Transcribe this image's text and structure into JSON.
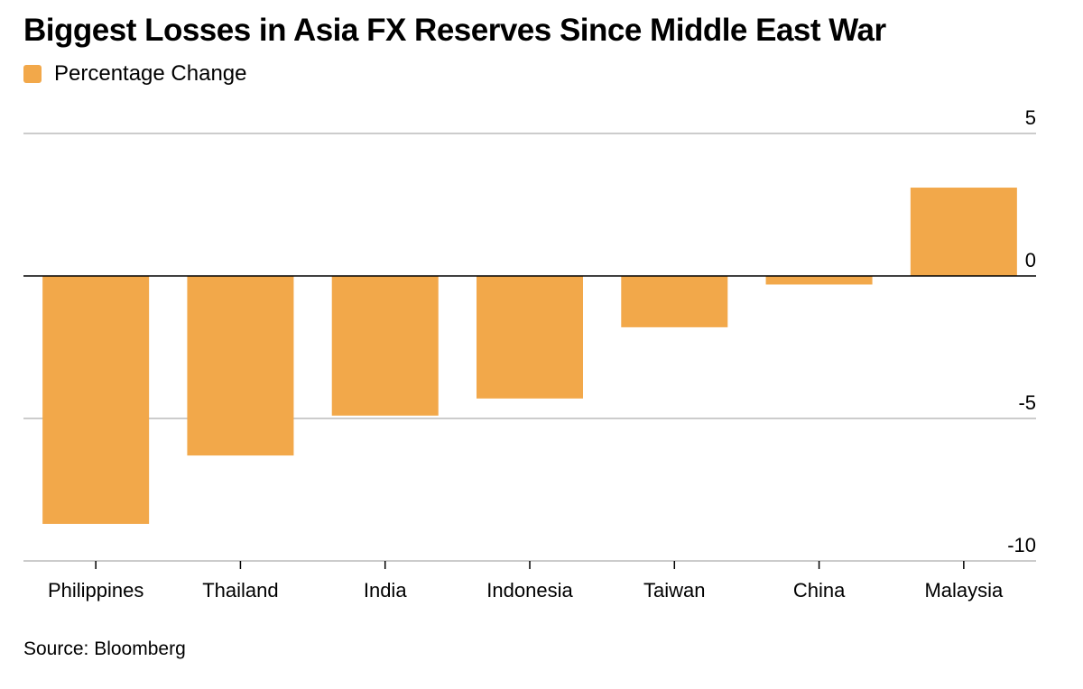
{
  "title": "Biggest Losses in Asia FX Reserves Since Middle East War",
  "legend": {
    "label": "Percentage Change",
    "color": "#f2a84a"
  },
  "source": "Source: Bloomberg",
  "chart_data": {
    "type": "bar",
    "categories": [
      "Philippines",
      "Thailand",
      "India",
      "Indonesia",
      "Taiwan",
      "China",
      "Malaysia"
    ],
    "series": [
      {
        "name": "Percentage Change",
        "values": [
          -8.7,
          -6.3,
          -4.9,
          -4.3,
          -1.8,
          -0.3,
          3.1
        ]
      }
    ],
    "ylim": [
      -10,
      5
    ],
    "yticks": [
      5,
      0,
      -5,
      -10
    ],
    "grid": true,
    "legend_position": "top-left",
    "bar_color": "#f2a84a"
  }
}
